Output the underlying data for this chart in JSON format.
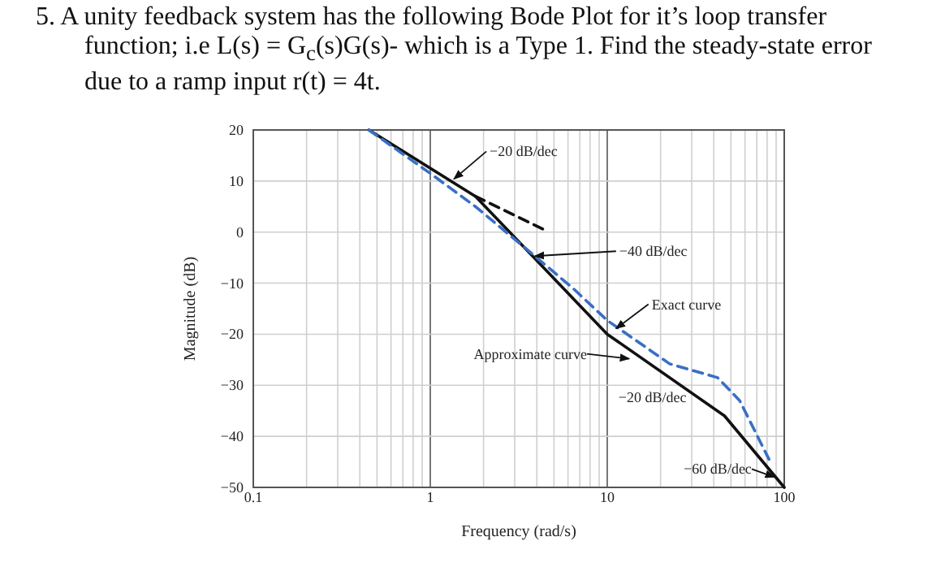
{
  "chart_data": {
    "type": "line",
    "title": "5. A unity feedback system has the following Bode Plot for it’s loop transfer function; i.e L(s) = G$_{c}$(s)G(s)- which is a Type 1. Find the steady-state error due to a ramp input r(t) = 4t.",
    "xlabel": "Frequency (rad/s)",
    "ylabel": "Magnitude (dB)",
    "log": "x",
    "grid": true,
    "xlim": [
      0.1,
      100
    ],
    "ylim": [
      -50,
      20
    ],
    "xticks": [
      0.1,
      {
        "value": 0.2,
        "label": null
      },
      {
        "value": 0.3,
        "label": null
      },
      {
        "value": 0.4,
        "label": null
      },
      {
        "value": 0.5,
        "label": null
      },
      {
        "value": 0.6,
        "label": null
      },
      {
        "value": 0.7,
        "label": null
      },
      {
        "value": 0.8,
        "label": null
      },
      {
        "value": 0.9,
        "label": null
      },
      1,
      {
        "value": 2,
        "label": null
      },
      {
        "value": 3,
        "label": null
      },
      {
        "value": 4,
        "label": null
      },
      {
        "value": 5,
        "label": null
      },
      {
        "value": 6,
        "label": null
      },
      {
        "value": 7,
        "label": null
      },
      {
        "value": 8,
        "label": null
      },
      {
        "value": 9,
        "label": null
      },
      10,
      {
        "value": 20,
        "label": null
      },
      {
        "value": 30,
        "label": null
      },
      {
        "value": 40,
        "label": null
      },
      {
        "value": 50,
        "label": null
      },
      {
        "value": 60,
        "label": null
      },
      {
        "value": 70,
        "label": null
      },
      {
        "value": 80,
        "label": null
      },
      {
        "value": 90,
        "label": null
      },
      100
    ],
    "yticks": [
      {
        "value": -50,
        "label": "−50"
      },
      {
        "value": -40,
        "label": "−40"
      },
      {
        "value": -30,
        "label": "−30"
      },
      {
        "value": -20,
        "label": "−20"
      },
      {
        "value": -10,
        "label": "−10"
      },
      0,
      10,
      20
    ],
    "series": [
      {
        "color": "#111111",
        "line_style": "solid",
        "x": [
          0.45,
          1.8,
          10,
          46,
          100
        ],
        "values": [
          20,
          7,
          -20,
          -36,
          -50
        ]
      },
      {
        "color": "#3a6fc4",
        "line_style": "dashed",
        "x": [
          0.45,
          1,
          1.8,
          3.9,
          6.4,
          10,
          22.5,
          42,
          56,
          82
        ],
        "values": [
          20,
          11.5,
          5,
          -4.7,
          -11,
          -17.3,
          -25.8,
          -28.5,
          -33,
          -44.5
        ]
      },
      {
        "color": "#111111",
        "line_style": "dashed",
        "x": [
          1.8,
          4.5
        ],
        "values": [
          7,
          0.3
        ]
      }
    ],
    "annotations": [
      {
        "text": "−20 dB/dec",
        "x": 1.36,
        "y": 10.4
      },
      {
        "text": "−40 dB/dec",
        "x": 3.9,
        "y": -4.7
      },
      {
        "text": "Exact curve",
        "x": 11.2,
        "y": -18.9
      },
      {
        "text": "Approximate curve",
        "x": 13.3,
        "y": -24.8
      },
      {
        "text": "−20 dB/dec",
        "x": 20,
        "y": -26
      },
      {
        "text": "−60 dB/dec",
        "x": 88,
        "y": -48
      }
    ]
  }
}
